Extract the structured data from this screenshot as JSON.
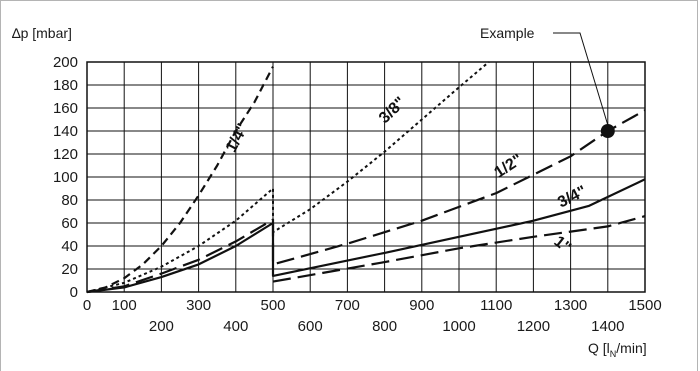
{
  "chart_data": {
    "type": "line",
    "ylabel": "∆p [mbar]",
    "xlabel": "Q [lN/min]",
    "xlabel_main": "Q [l",
    "xlabel_sub": "N",
    "xlabel_end": "/min]",
    "xlim": [
      0,
      1500
    ],
    "ylim": [
      0,
      200
    ],
    "x_ticks_top_row": [
      "0",
      "100",
      "300",
      "500",
      "700",
      "900",
      "1100",
      "1300",
      "1500"
    ],
    "x_ticks_bottom_row": [
      "200",
      "400",
      "600",
      "800",
      "1000",
      "1200",
      "1400"
    ],
    "y_ticks": [
      "0",
      "20",
      "40",
      "60",
      "80",
      "100",
      "120",
      "140",
      "160",
      "180",
      "200"
    ],
    "grid": true,
    "series": [
      {
        "name": "1/4\"",
        "style": "dashed",
        "points": [
          [
            0,
            0
          ],
          [
            50,
            4
          ],
          [
            100,
            12
          ],
          [
            150,
            24
          ],
          [
            200,
            40
          ],
          [
            250,
            60
          ],
          [
            300,
            84
          ],
          [
            350,
            110
          ],
          [
            400,
            140
          ],
          [
            450,
            165
          ],
          [
            500,
            196
          ]
        ]
      },
      {
        "name": "3/8\"",
        "style": "dotted",
        "points": [
          [
            0,
            0
          ],
          [
            100,
            8
          ],
          [
            200,
            22
          ],
          [
            300,
            40
          ],
          [
            400,
            62
          ],
          [
            500,
            90
          ],
          [
            500,
            52
          ],
          [
            600,
            72
          ],
          [
            700,
            96
          ],
          [
            800,
            122
          ],
          [
            900,
            150
          ],
          [
            1000,
            178
          ],
          [
            1080,
            200
          ]
        ]
      },
      {
        "name": "1/2\"",
        "style": "long-dashed",
        "points": [
          [
            0,
            0
          ],
          [
            100,
            5
          ],
          [
            200,
            16
          ],
          [
            300,
            28
          ],
          [
            400,
            44
          ],
          [
            500,
            63
          ],
          [
            500,
            24
          ],
          [
            700,
            42
          ],
          [
            900,
            62
          ],
          [
            1100,
            86
          ],
          [
            1300,
            118
          ],
          [
            1400,
            140
          ],
          [
            1500,
            158
          ]
        ]
      },
      {
        "name": "3/4\"",
        "style": "solid",
        "points": [
          [
            0,
            0
          ],
          [
            100,
            4
          ],
          [
            200,
            13
          ],
          [
            300,
            24
          ],
          [
            400,
            40
          ],
          [
            500,
            60
          ],
          [
            500,
            14
          ],
          [
            800,
            34
          ],
          [
            1000,
            48
          ],
          [
            1200,
            62
          ],
          [
            1350,
            75
          ],
          [
            1500,
            98
          ]
        ]
      },
      {
        "name": "1\"",
        "style": "long-dashed",
        "points": [
          [
            500,
            9
          ],
          [
            800,
            26
          ],
          [
            1000,
            38
          ],
          [
            1200,
            48
          ],
          [
            1400,
            57
          ],
          [
            1500,
            66
          ]
        ]
      }
    ],
    "annotation": {
      "text": "Example",
      "point": [
        1400,
        140
      ]
    },
    "series_labels": [
      "1/4\"",
      "3/8\"",
      "1/2\"",
      "3/4\"",
      "1\""
    ]
  }
}
